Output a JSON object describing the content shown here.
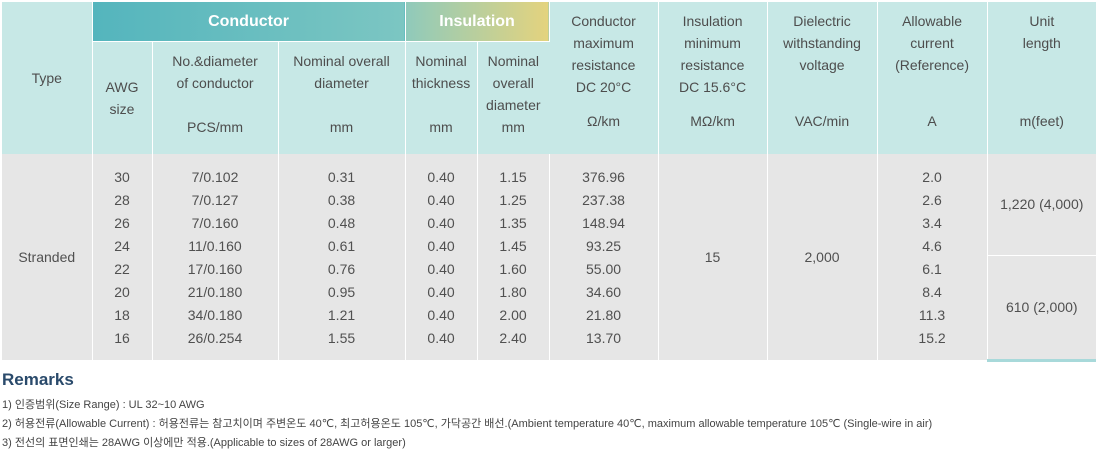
{
  "header": {
    "type": "Type",
    "conductor_group": "Conductor",
    "insulation_group": "Insulation",
    "awg": [
      "AWG",
      "size"
    ],
    "no_diameter": [
      "No.&diameter",
      "of conductor"
    ],
    "no_diameter_unit": "PCS/mm",
    "nominal_overall_diameter": [
      "Nominal overall",
      "diameter"
    ],
    "nominal_overall_diameter_unit": "mm",
    "nominal_thickness": [
      "Nominal",
      "thickness"
    ],
    "nominal_thickness_unit": "mm",
    "ins_overall_diameter": [
      "Nominal",
      "overall",
      "diameter"
    ],
    "ins_overall_diameter_unit": "mm",
    "max_resistance": [
      "Conductor",
      "maximum",
      "resistance",
      "DC 20°C"
    ],
    "max_resistance_unit": "Ω/km",
    "min_resistance": [
      "Insulation",
      "minimum",
      "resistance",
      "DC 15.6°C"
    ],
    "min_resistance_unit": "MΩ/km",
    "dielectric": [
      "Dielectric",
      "withstanding",
      "voltage"
    ],
    "dielectric_unit": "VAC/min",
    "allowable_current": [
      "Allowable",
      "current",
      "(Reference)"
    ],
    "allowable_current_unit": "A",
    "unit_length": [
      "Unit",
      "length"
    ],
    "unit_length_unit": "m(feet)"
  },
  "body": {
    "type": "Stranded",
    "awg": [
      "30",
      "28",
      "26",
      "24",
      "22",
      "20",
      "18",
      "16"
    ],
    "no_diameter": [
      "7/0.102",
      "7/0.127",
      "7/0.160",
      "11/0.160",
      "17/0.160",
      "21/0.180",
      "34/0.180",
      "26/0.254"
    ],
    "overall_diameter": [
      "0.31",
      "0.38",
      "0.48",
      "0.61",
      "0.76",
      "0.95",
      "1.21",
      "1.55"
    ],
    "thickness": [
      "0.40",
      "0.40",
      "0.40",
      "0.40",
      "0.40",
      "0.40",
      "0.40",
      "0.40"
    ],
    "ins_overall_diameter": [
      "1.15",
      "1.25",
      "1.35",
      "1.45",
      "1.60",
      "1.80",
      "2.00",
      "2.40"
    ],
    "max_resistance": [
      "376.96",
      "237.38",
      "148.94",
      "93.25",
      "55.00",
      "34.60",
      "21.80",
      "13.70"
    ],
    "min_resistance": "15",
    "dielectric": "2,000",
    "allowable_current": [
      "2.0",
      "2.6",
      "3.4",
      "4.6",
      "6.1",
      "8.4",
      "11.3",
      "15.2"
    ],
    "unit_length_1": [
      "1,220",
      "(4,000)"
    ],
    "unit_length_2": [
      "610",
      "(2,000)"
    ]
  },
  "remarks": {
    "title": "Remarks",
    "items": [
      "1) 인증범위(Size Range) : UL 32~10 AWG",
      "2) 허용전류(Allowable Current) : 허용전류는 참고치이며 주변온도 40℃, 최고허용온도 105℃, 가닥공간 배선.(Ambient temperature 40℃, maximum allowable temperature 105℃ (Single-wire in air)",
      "3) 전선의 표면인쇄는 28AWG 이상에만 적용.(Applicable to sizes of 28AWG or larger)"
    ]
  }
}
